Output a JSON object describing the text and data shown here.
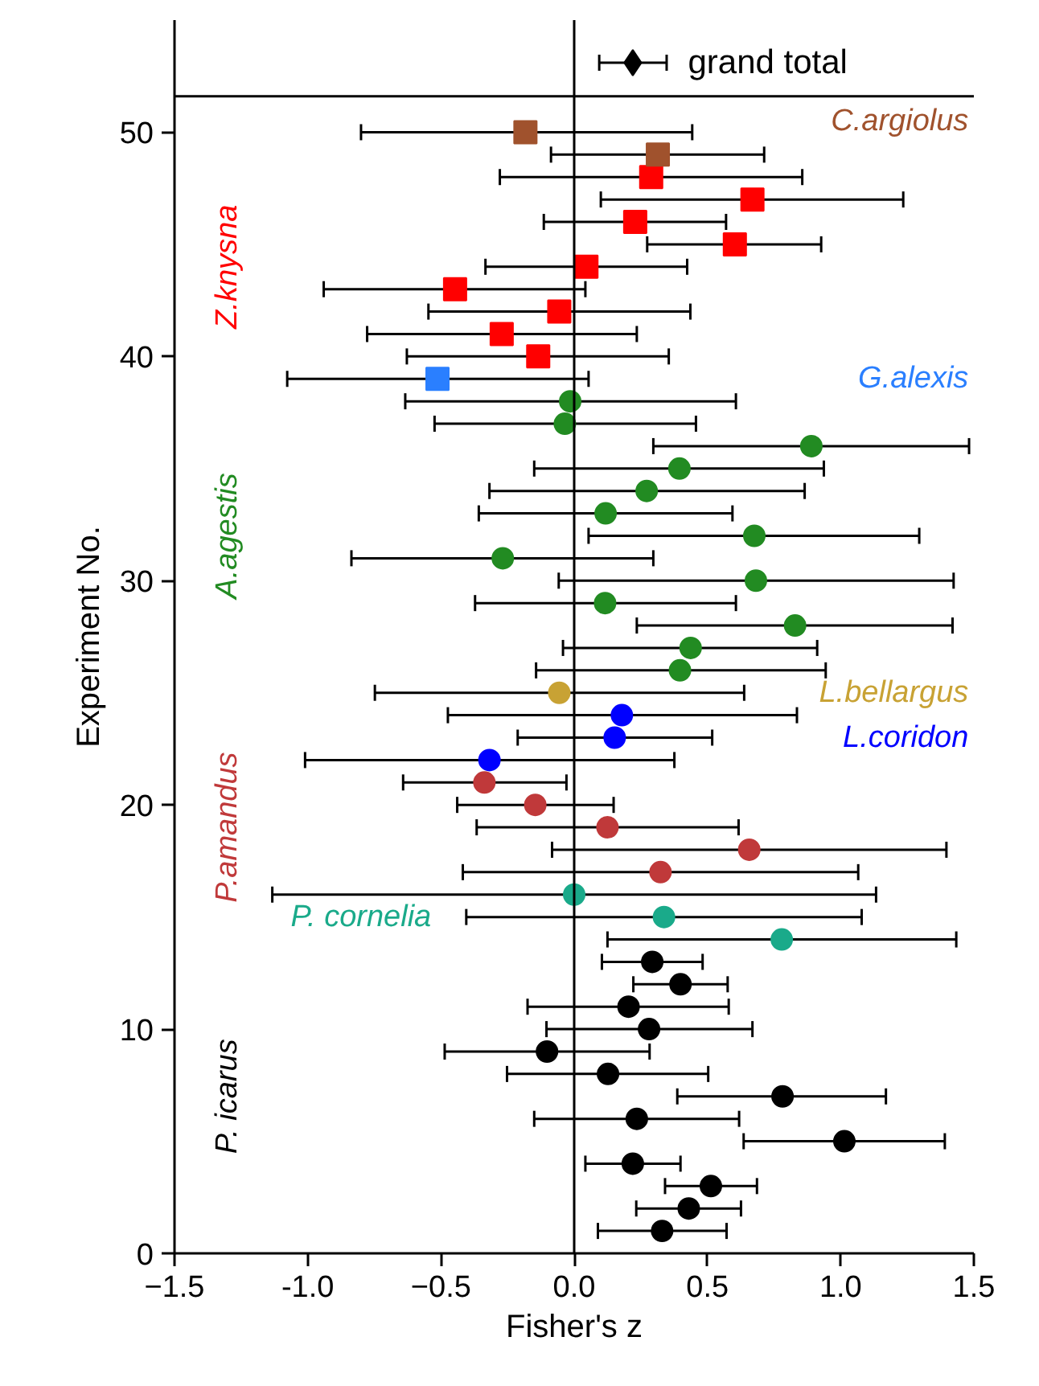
{
  "chart_data": {
    "type": "scatter",
    "xlabel": "Fisher's z",
    "ylabel": "Experiment No.",
    "xlim": [
      -1.5,
      1.5
    ],
    "ylim": [
      0,
      55
    ],
    "xticks": [
      -1.5,
      {
        "value": -1.0,
        "label": "-1.0"
      },
      -0.5,
      {
        "value": 0,
        "label": "0.0"
      },
      0.5,
      {
        "value": 1.0,
        "label": "1.0"
      },
      1.5
    ],
    "yticks": [
      0,
      10,
      20,
      30,
      40,
      50
    ],
    "grid": false,
    "ref_lines": [
      {
        "axis": "x",
        "value": 0,
        "label": null,
        "color": "#000000"
      },
      {
        "axis": "y",
        "value": 51.6,
        "label": null,
        "color": "#000000"
      }
    ],
    "series": [
      {
        "name": "P. icarus",
        "color": "#000000",
        "marker": "circle",
        "x": [
          0.33,
          0.43,
          0.513,
          0.22,
          1.014,
          0.235,
          0.782,
          0.127,
          -0.102,
          0.281,
          0.204,
          0.399,
          0.293
        ],
        "values": [
          1,
          2,
          3,
          4,
          5,
          6,
          7,
          8,
          9,
          10,
          11,
          12,
          13
        ],
        "xerrors": [
          [
            0.089,
            0.572
          ],
          [
            0.233,
            0.626
          ],
          [
            0.341,
            0.686
          ],
          [
            0.042,
            0.399
          ],
          [
            0.636,
            1.391
          ],
          [
            -0.15,
            0.619
          ],
          [
            0.387,
            1.17
          ],
          [
            -0.252,
            0.503
          ],
          [
            -0.486,
            0.283
          ],
          [
            -0.104,
            0.669
          ],
          [
            -0.175,
            0.58
          ],
          [
            0.222,
            0.576
          ],
          [
            0.104,
            0.482
          ]
        ]
      },
      {
        "name": "P. cornelia",
        "color": "#1aaa8a",
        "marker": "circle",
        "x": [
          0.779,
          0.337,
          0.0
        ],
        "values": [
          14,
          15,
          16
        ],
        "xerrors": [
          [
            0.125,
            1.434
          ],
          [
            -0.405,
            1.079
          ],
          [
            -1.133,
            1.133
          ]
        ]
      },
      {
        "name": "P.amandus",
        "color": "#c0393a",
        "marker": "circle",
        "x": [
          0.324,
          0.657,
          0.125,
          -0.146,
          -0.337
        ],
        "values": [
          17,
          18,
          19,
          20,
          21
        ],
        "xerrors": [
          [
            -0.418,
            1.066
          ],
          [
            -0.083,
            1.397
          ],
          [
            -0.366,
            0.617
          ],
          [
            -0.439,
            0.148
          ],
          [
            -0.642,
            -0.029
          ]
        ]
      },
      {
        "name": "L.coridon",
        "color": "#0000ff",
        "marker": "circle",
        "x": [
          -0.318,
          0.152,
          0.179
        ],
        "values": [
          22,
          23,
          24
        ],
        "xerrors": [
          [
            -1.01,
            0.376
          ],
          [
            -0.212,
            0.518
          ],
          [
            -0.474,
            0.836
          ]
        ]
      },
      {
        "name": "L.bellargus",
        "color": "#c8a234",
        "marker": "circle",
        "x": [
          -0.056
        ],
        "values": [
          25
        ],
        "xerrors": [
          [
            -0.748,
            0.638
          ]
        ]
      },
      {
        "name": "A.agestis",
        "color": "#228b22",
        "marker": "circle",
        "x": [
          0.397,
          0.437,
          0.829,
          0.116,
          0.682,
          -0.268,
          0.676,
          0.118,
          0.272,
          0.395,
          0.89,
          -0.035,
          -0.015
        ],
        "values": [
          26,
          27,
          28,
          29,
          30,
          31,
          32,
          33,
          34,
          35,
          36,
          37,
          38
        ],
        "xerrors": [
          [
            -0.143,
            0.944
          ],
          [
            -0.042,
            0.912
          ],
          [
            0.235,
            1.42
          ],
          [
            -0.372,
            0.607
          ],
          [
            -0.058,
            1.424
          ],
          [
            -0.836,
            0.297
          ],
          [
            0.054,
            1.295
          ],
          [
            -0.358,
            0.594
          ],
          [
            -0.318,
            0.865
          ],
          [
            -0.15,
            0.937
          ],
          [
            0.297,
            1.482
          ],
          [
            -0.524,
            0.457
          ],
          [
            -0.634,
            0.607
          ]
        ]
      },
      {
        "name": "G.alexis",
        "color": "#2a7fff",
        "marker": "square",
        "x": [
          -0.513
        ],
        "values": [
          39
        ],
        "xerrors": [
          [
            -1.077,
            0.054
          ]
        ]
      },
      {
        "name": "Z.knysna",
        "color": "#ff0000",
        "marker": "square",
        "x": [
          -0.135,
          -0.272,
          -0.056,
          -0.447,
          0.046,
          0.603,
          0.229,
          0.669,
          0.289
        ],
        "values": [
          40,
          41,
          42,
          43,
          44,
          45,
          46,
          47,
          48
        ],
        "xerrors": [
          [
            -0.628,
            0.355
          ],
          [
            -0.777,
            0.235
          ],
          [
            -0.547,
            0.436
          ],
          [
            -0.94,
            0.042
          ],
          [
            -0.333,
            0.424
          ],
          [
            0.274,
            0.927
          ],
          [
            -0.114,
            0.57
          ],
          [
            0.1,
            1.235
          ],
          [
            -0.279,
            0.856
          ]
        ]
      },
      {
        "name": "C.argiolus",
        "color": "#a0522d",
        "marker": "square",
        "x": [
          0.314,
          -0.183
        ],
        "values": [
          49,
          50
        ],
        "xerrors": [
          [
            -0.087,
            0.713
          ],
          [
            -0.8,
            0.443
          ]
        ]
      },
      {
        "name": "grand total",
        "color": "#000000",
        "marker": "diamond",
        "x": [
          0.22
        ],
        "values": [
          53.1
        ],
        "xerrors": [
          [
            0.094,
            0.347
          ]
        ]
      }
    ]
  }
}
